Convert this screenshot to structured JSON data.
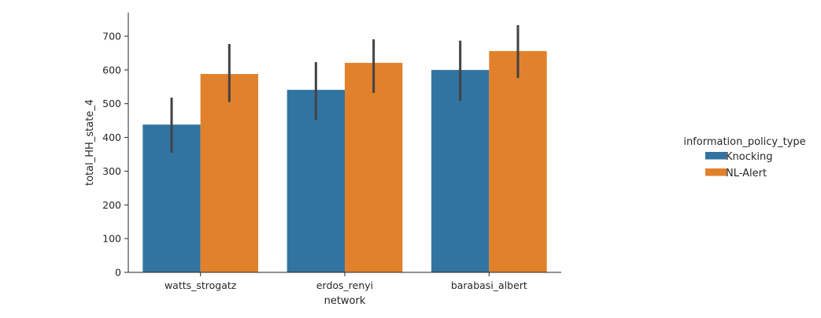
{
  "chart_data": {
    "type": "bar",
    "xlabel": "network",
    "ylabel": "total_HH_state_4",
    "categories": [
      "watts_strogatz",
      "erdos_renyi",
      "barabasi_albert"
    ],
    "ylim": [
      0,
      770
    ],
    "yticks": [
      0,
      100,
      200,
      300,
      400,
      500,
      600,
      700
    ],
    "legend": {
      "title": "information_policy_type",
      "placement": "right"
    },
    "series": [
      {
        "name": "Knocking",
        "color": "#3274a1",
        "values": [
          438,
          541,
          600
        ],
        "ci_low": [
          355,
          452,
          508
        ],
        "ci_high": [
          518,
          623,
          687
        ]
      },
      {
        "name": "NL-Alert",
        "color": "#e1812c",
        "values": [
          588,
          621,
          656
        ],
        "ci_low": [
          505,
          532,
          576
        ],
        "ci_high": [
          677,
          691,
          733
        ]
      }
    ],
    "errorbar_color": "#424242",
    "grid": false
  }
}
